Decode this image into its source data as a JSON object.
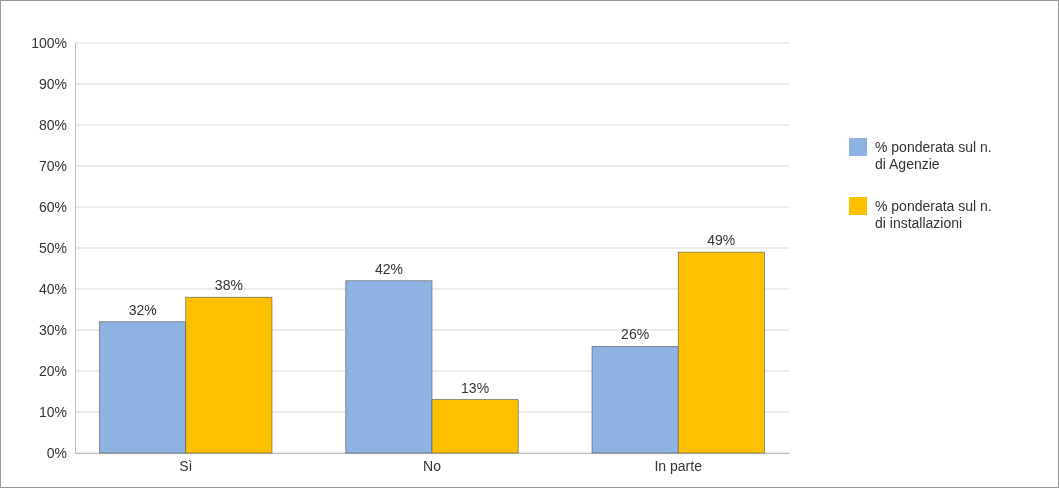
{
  "chart_data": {
    "type": "bar",
    "categories": [
      "Sì",
      "No",
      "In parte"
    ],
    "series": [
      {
        "name": "% ponderata sul n. di Agenzie",
        "color": "#8db3e2",
        "values": [
          32,
          42,
          26
        ],
        "value_labels": [
          "32%",
          "42%",
          "26%"
        ]
      },
      {
        "name": "% ponderata sul n. di installazioni",
        "color": "#ffc000",
        "values": [
          38,
          13,
          49
        ],
        "value_labels": [
          "38%",
          "13%",
          "49%"
        ]
      }
    ],
    "ylim": [
      0,
      100
    ],
    "yticks": [
      {
        "value": 0,
        "label": "0%"
      },
      {
        "value": 10,
        "label": "10%"
      },
      {
        "value": 20,
        "label": "20%"
      },
      {
        "value": 30,
        "label": "30%"
      },
      {
        "value": 40,
        "label": "40%"
      },
      {
        "value": 50,
        "label": "50%"
      },
      {
        "value": 60,
        "label": "60%"
      },
      {
        "value": 70,
        "label": "70%"
      },
      {
        "value": 80,
        "label": "80%"
      },
      {
        "value": 90,
        "label": "90%"
      },
      {
        "value": 100,
        "label": "100%"
      }
    ],
    "grid": "y",
    "legend": "right"
  }
}
